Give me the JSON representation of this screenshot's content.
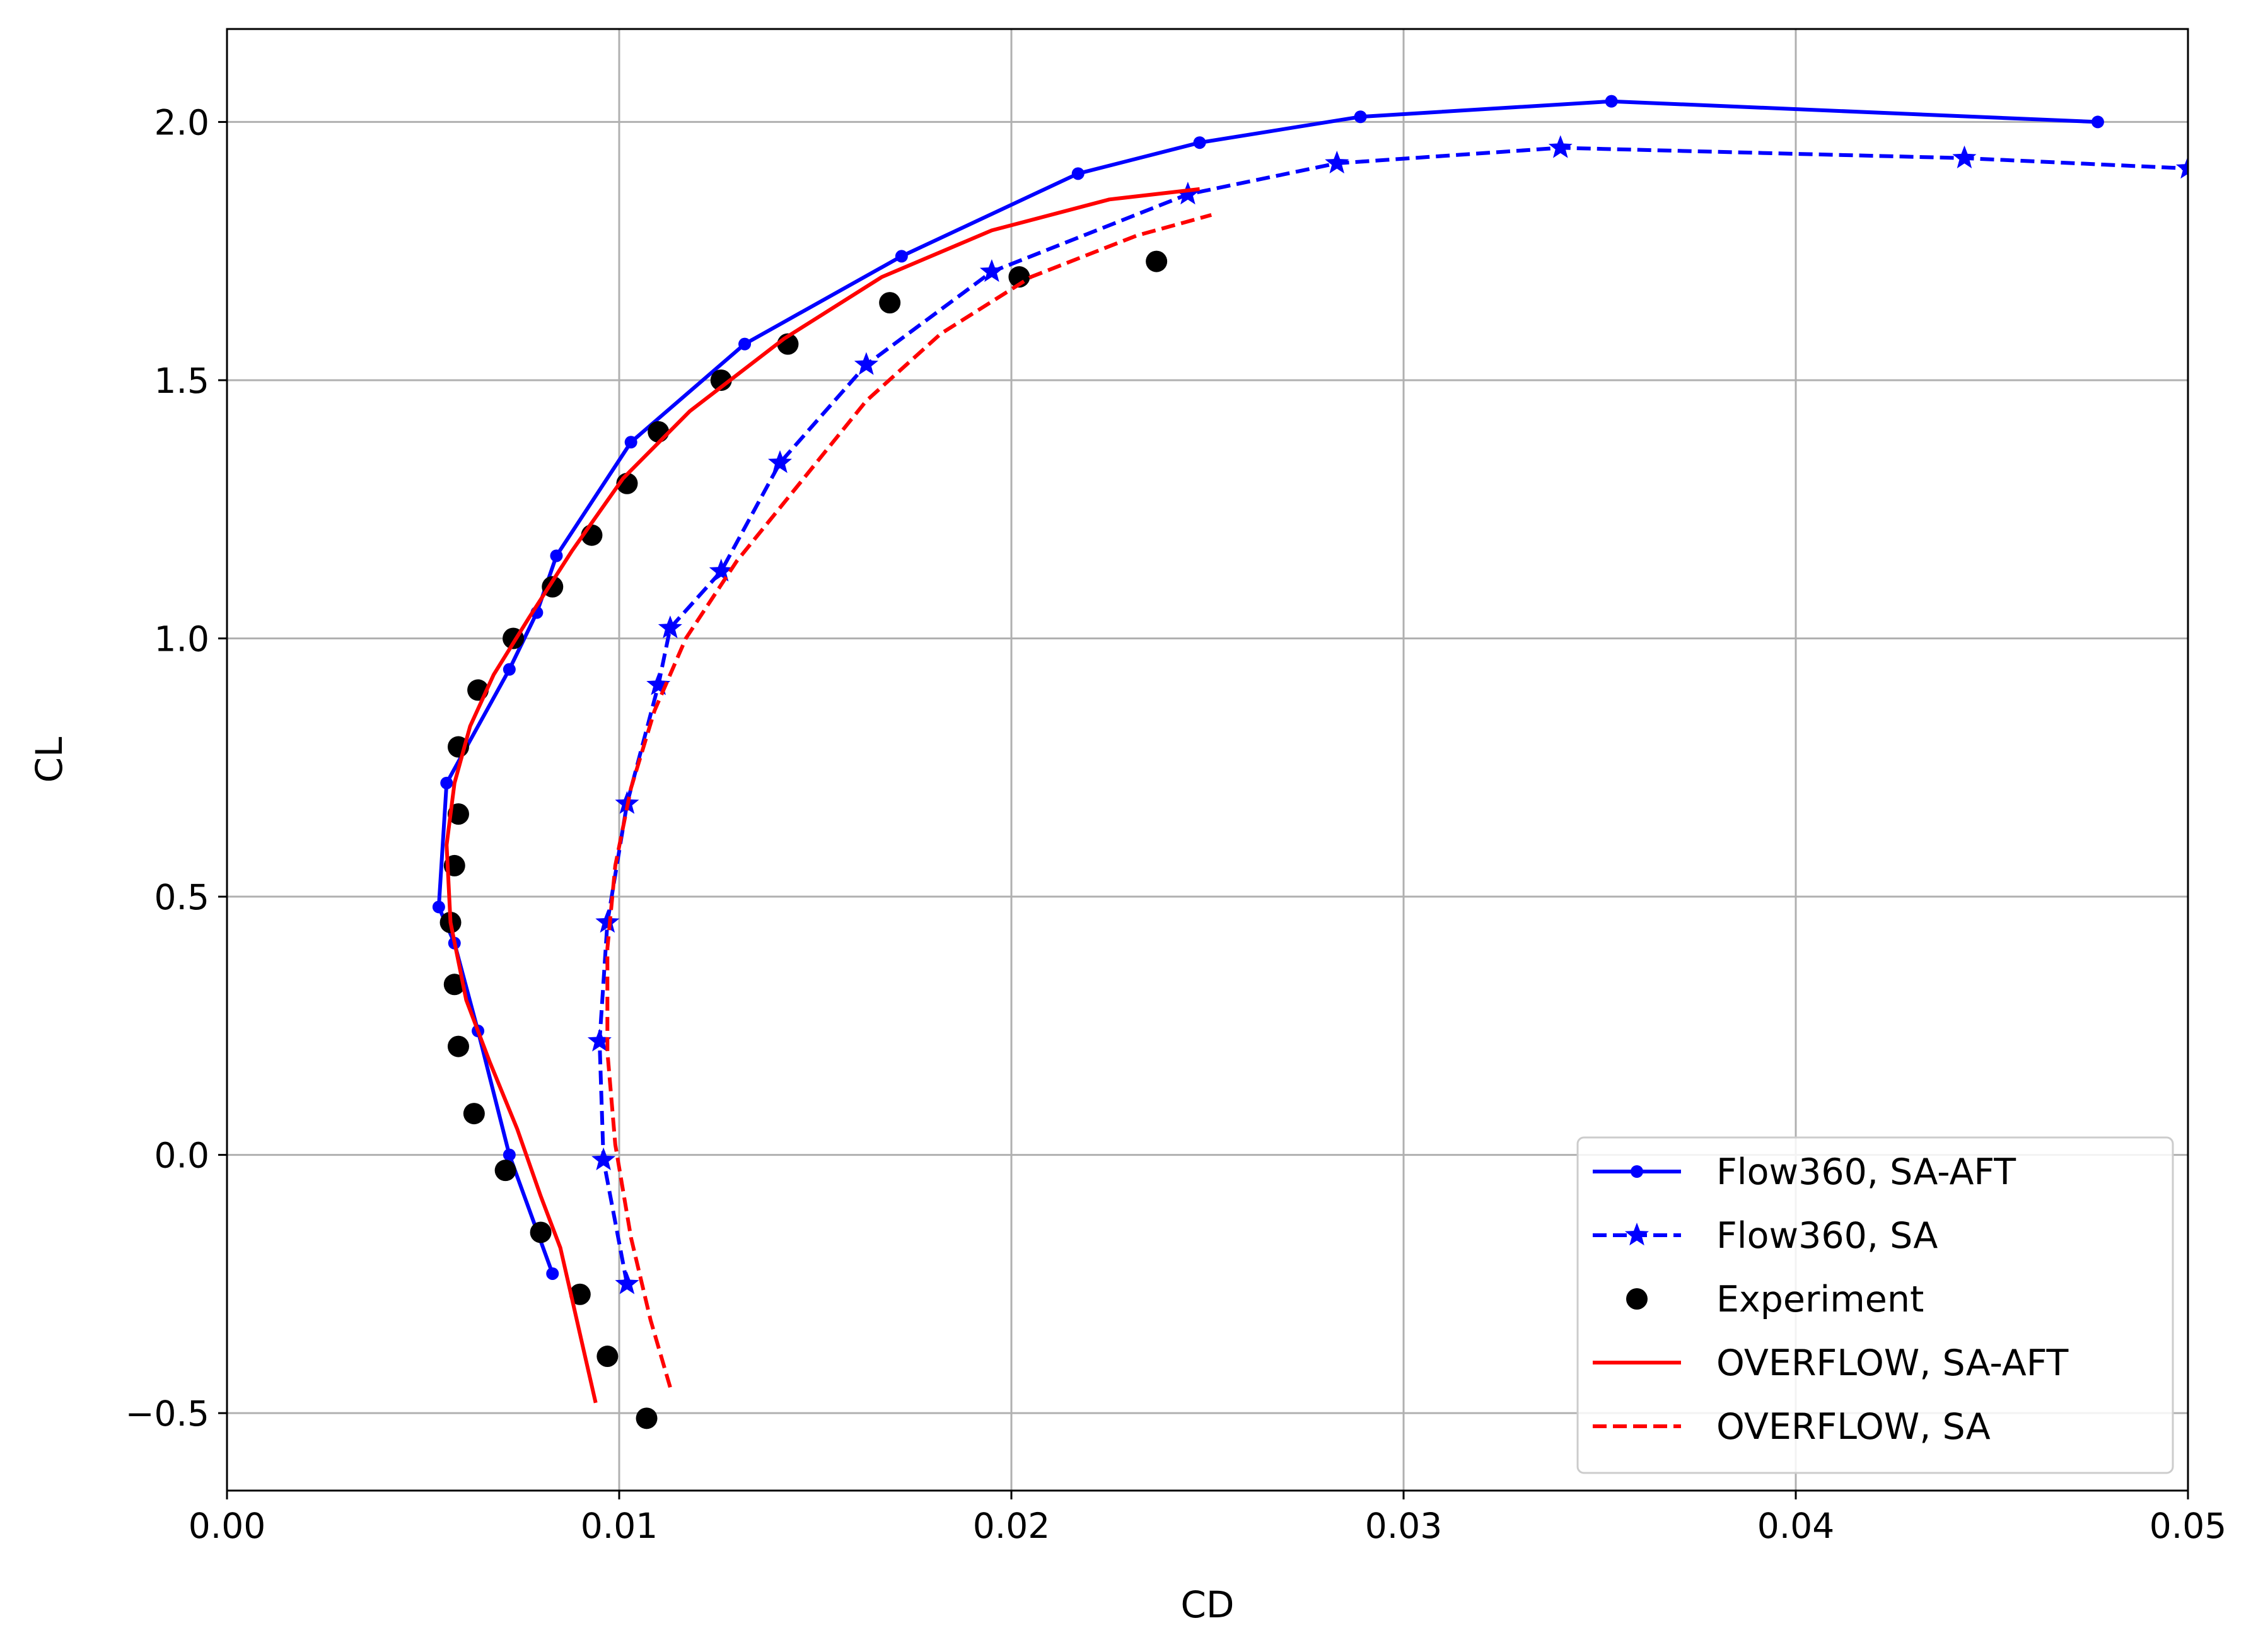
{
  "chart_data": {
    "type": "line",
    "xlabel": "CD",
    "ylabel": "CL",
    "xlim": [
      0.0,
      0.05
    ],
    "ylim": [
      -0.65,
      2.18
    ],
    "xticks": [
      "0.00",
      "0.01",
      "0.02",
      "0.03",
      "0.04",
      "0.05"
    ],
    "yticks": [
      "−0.5",
      "0.0",
      "0.5",
      "1.0",
      "1.5",
      "2.0"
    ],
    "grid": true,
    "legend_position": "lower-right",
    "series": [
      {
        "name": "Flow360, SA-AFT",
        "color": "#0000ff",
        "style": "solid",
        "marker": "circle",
        "x": [
          0.0083,
          0.0072,
          0.0064,
          0.0058,
          0.0054,
          0.0056,
          0.0072,
          0.0079,
          0.0084,
          0.0103,
          0.0132,
          0.0172,
          0.0217,
          0.0248,
          0.0289,
          0.0353,
          0.0477
        ],
        "y": [
          -0.23,
          0.0,
          0.24,
          0.41,
          0.48,
          0.72,
          0.94,
          1.05,
          1.16,
          1.38,
          1.57,
          1.74,
          1.9,
          1.96,
          2.01,
          2.04,
          2.0
        ]
      },
      {
        "name": "Flow360, SA",
        "color": "#0000ff",
        "style": "dashed",
        "marker": "star",
        "x": [
          0.0102,
          0.0096,
          0.0095,
          0.0097,
          0.0102,
          0.011,
          0.0113,
          0.0126,
          0.0141,
          0.0163,
          0.0195,
          0.0245,
          0.0283,
          0.034,
          0.0443,
          0.05
        ],
        "y": [
          -0.25,
          -0.01,
          0.22,
          0.45,
          0.68,
          0.91,
          1.02,
          1.13,
          1.34,
          1.53,
          1.71,
          1.86,
          1.92,
          1.95,
          1.93,
          1.91
        ]
      },
      {
        "name": "Experiment",
        "color": "#000000",
        "style": "none",
        "marker": "circle",
        "x": [
          0.0107,
          0.0097,
          0.009,
          0.008,
          0.0071,
          0.0063,
          0.0059,
          0.0058,
          0.0057,
          0.0058,
          0.0059,
          0.0059,
          0.0064,
          0.0073,
          0.0083,
          0.0093,
          0.0102,
          0.011,
          0.0126,
          0.0143,
          0.0169,
          0.0202,
          0.0237
        ],
        "y": [
          -0.51,
          -0.39,
          -0.27,
          -0.15,
          -0.03,
          0.08,
          0.21,
          0.33,
          0.45,
          0.56,
          0.66,
          0.79,
          0.9,
          1.0,
          1.1,
          1.2,
          1.3,
          1.4,
          1.5,
          1.57,
          1.65,
          1.7,
          1.73
        ]
      },
      {
        "name": "OVERFLOW, SA-AFT",
        "color": "#ff0000",
        "style": "solid",
        "marker": "none",
        "x": [
          0.0094,
          0.0091,
          0.0088,
          0.0085,
          0.008,
          0.0074,
          0.0067,
          0.0061,
          0.0057,
          0.0056,
          0.0058,
          0.0062,
          0.0068,
          0.0077,
          0.0088,
          0.0101,
          0.0118,
          0.0142,
          0.0167,
          0.0195,
          0.0225,
          0.0248
        ],
        "y": [
          -0.48,
          -0.38,
          -0.28,
          -0.18,
          -0.08,
          0.05,
          0.18,
          0.3,
          0.45,
          0.6,
          0.72,
          0.83,
          0.93,
          1.04,
          1.17,
          1.31,
          1.44,
          1.58,
          1.7,
          1.79,
          1.85,
          1.87
        ]
      },
      {
        "name": "OVERFLOW, SA",
        "color": "#ff0000",
        "style": "dashed",
        "marker": "none",
        "x": [
          0.0113,
          0.0108,
          0.0103,
          0.0099,
          0.0097,
          0.0097,
          0.0099,
          0.0103,
          0.0109,
          0.0117,
          0.013,
          0.0146,
          0.0163,
          0.0182,
          0.0205,
          0.0232,
          0.0251
        ],
        "y": [
          -0.45,
          -0.32,
          -0.16,
          0.02,
          0.2,
          0.4,
          0.56,
          0.71,
          0.86,
          1.0,
          1.15,
          1.3,
          1.46,
          1.59,
          1.7,
          1.78,
          1.82
        ]
      }
    ]
  }
}
